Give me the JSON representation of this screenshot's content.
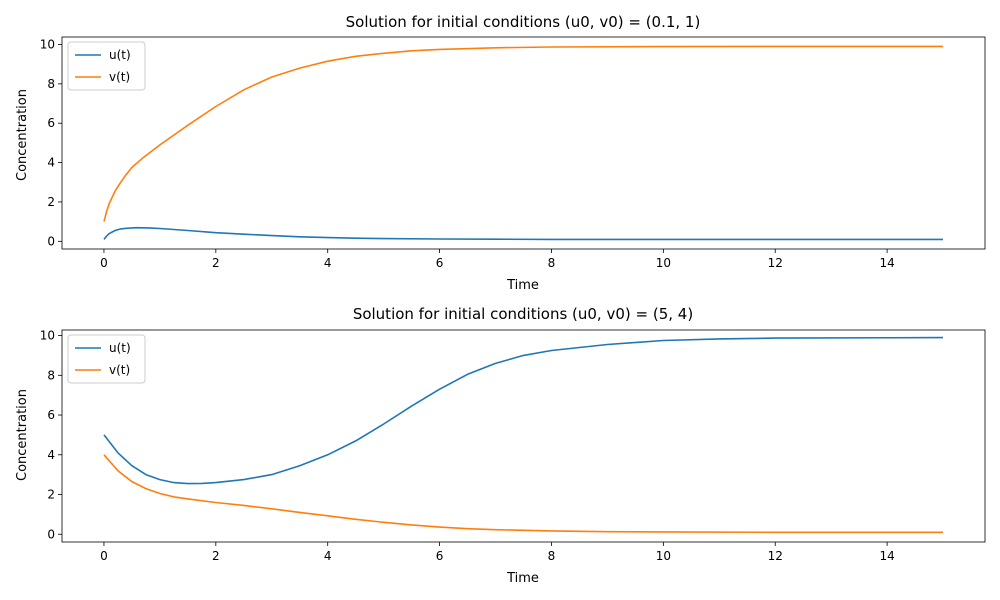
{
  "colors": {
    "u": "#1f77b4",
    "v": "#ff7f0e",
    "legend_border": "#cccccc"
  },
  "chart_data": [
    {
      "type": "line",
      "title": "Solution for initial conditions (u0, v0) = (0.1, 1)",
      "xlabel": "Time",
      "ylabel": "Concentration",
      "xlim": [
        -0.75,
        15.75
      ],
      "ylim": [
        -0.39,
        10.38
      ],
      "xticks": [
        0,
        2,
        4,
        6,
        8,
        10,
        12,
        14
      ],
      "xtick_labels": [
        "0",
        "2",
        "4",
        "6",
        "8",
        "10",
        "12",
        "14"
      ],
      "yticks": [
        0,
        2,
        4,
        6,
        8,
        10
      ],
      "ytick_labels": [
        "0",
        "2",
        "4",
        "6",
        "8",
        "10"
      ],
      "grid": false,
      "legend_position": "upper-left",
      "series": [
        {
          "name": "u(t)",
          "x": [
            0,
            0.05,
            0.1,
            0.2,
            0.3,
            0.4,
            0.5,
            0.6,
            0.8,
            1.0,
            1.5,
            2.0,
            2.5,
            3.0,
            3.5,
            4.0,
            4.5,
            5.0,
            6.0,
            7.0,
            8.0,
            10.0,
            12.0,
            15.0
          ],
          "y": [
            0.1,
            0.28,
            0.4,
            0.55,
            0.63,
            0.66,
            0.68,
            0.69,
            0.68,
            0.65,
            0.55,
            0.44,
            0.36,
            0.29,
            0.23,
            0.19,
            0.16,
            0.14,
            0.12,
            0.11,
            0.1,
            0.1,
            0.1,
            0.1
          ]
        },
        {
          "name": "v(t)",
          "x": [
            0,
            0.05,
            0.1,
            0.2,
            0.3,
            0.4,
            0.5,
            0.7,
            1.0,
            1.5,
            2.0,
            2.5,
            3.0,
            3.5,
            4.0,
            4.5,
            5.0,
            5.5,
            6.0,
            7.0,
            8.0,
            10.0,
            12.0,
            15.0
          ],
          "y": [
            1.0,
            1.55,
            1.95,
            2.55,
            3.0,
            3.4,
            3.75,
            4.25,
            4.9,
            5.9,
            6.85,
            7.7,
            8.35,
            8.8,
            9.15,
            9.4,
            9.55,
            9.68,
            9.75,
            9.83,
            9.87,
            9.89,
            9.9,
            9.9
          ]
        }
      ]
    },
    {
      "type": "line",
      "title": "Solution for initial conditions (u0, v0) = (5, 4)",
      "xlabel": "Time",
      "ylabel": "Concentration",
      "xlim": [
        -0.75,
        15.75
      ],
      "ylim": [
        -0.39,
        10.28
      ],
      "xticks": [
        0,
        2,
        4,
        6,
        8,
        10,
        12,
        14
      ],
      "xtick_labels": [
        "0",
        "2",
        "4",
        "6",
        "8",
        "10",
        "12",
        "14"
      ],
      "yticks": [
        0,
        2,
        4,
        6,
        8,
        10
      ],
      "ytick_labels": [
        "0",
        "2",
        "4",
        "6",
        "8",
        "10"
      ],
      "grid": false,
      "legend_position": "upper-left",
      "series": [
        {
          "name": "u(t)",
          "x": [
            0,
            0.25,
            0.5,
            0.75,
            1.0,
            1.25,
            1.5,
            1.75,
            2.0,
            2.5,
            3.0,
            3.5,
            4.0,
            4.5,
            5.0,
            5.5,
            6.0,
            6.5,
            7.0,
            7.5,
            8.0,
            9.0,
            10.0,
            11.0,
            12.0,
            15.0
          ],
          "y": [
            5.0,
            4.1,
            3.45,
            3.0,
            2.75,
            2.6,
            2.55,
            2.56,
            2.6,
            2.75,
            3.0,
            3.45,
            4.0,
            4.7,
            5.55,
            6.45,
            7.3,
            8.05,
            8.6,
            9.0,
            9.25,
            9.55,
            9.75,
            9.83,
            9.87,
            9.9
          ]
        },
        {
          "name": "v(t)",
          "x": [
            0,
            0.25,
            0.5,
            0.75,
            1.0,
            1.25,
            1.5,
            2.0,
            2.5,
            3.0,
            3.5,
            4.0,
            4.5,
            5.0,
            5.5,
            6.0,
            6.5,
            7.0,
            8.0,
            9.0,
            10.0,
            12.0,
            15.0
          ],
          "y": [
            4.0,
            3.2,
            2.65,
            2.3,
            2.05,
            1.88,
            1.78,
            1.6,
            1.45,
            1.28,
            1.1,
            0.93,
            0.75,
            0.6,
            0.47,
            0.36,
            0.28,
            0.23,
            0.17,
            0.13,
            0.12,
            0.1,
            0.1
          ]
        }
      ]
    }
  ]
}
